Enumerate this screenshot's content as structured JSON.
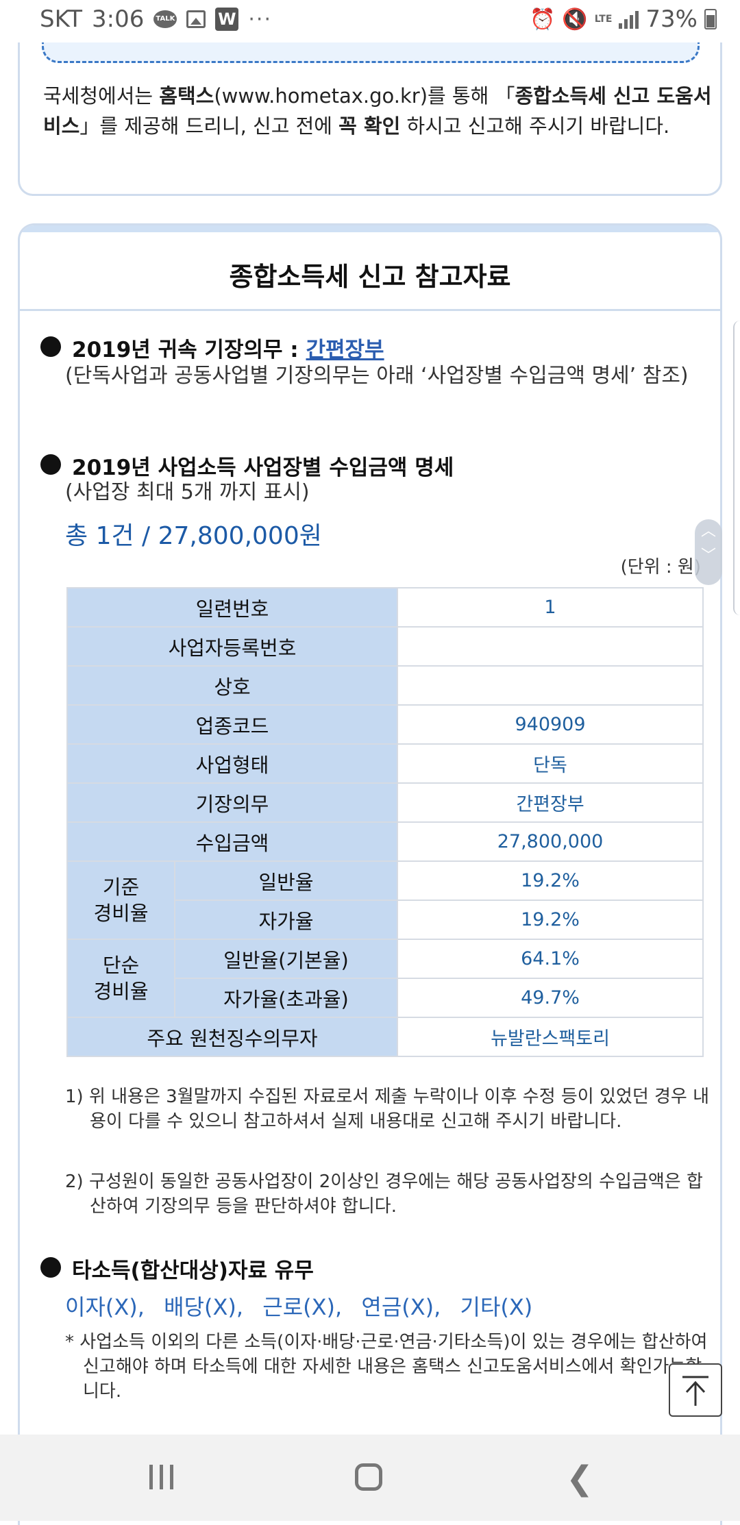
{
  "status_bar": {
    "carrier": "SKT",
    "time": "3:06",
    "talk_badge": "TALK",
    "w_badge": "W",
    "more": "···",
    "network": "LTE",
    "battery": "73%"
  },
  "notice": {
    "text_1": "국세청에서는 ",
    "text_bold_1": "홈택스",
    "text_2": "(www.hometax.go.kr)를 통해 「",
    "text_bold_2": "종합소득세 신고 도움서비스",
    "text_3": "」를 제공해 드리니, 신고 전에 ",
    "text_bold_3": "꼭 확인",
    "text_4": " 하시고 신고해 주시기 바랍니다."
  },
  "reference": {
    "title": "종합소득세 신고 참고자료",
    "duty": {
      "label": "2019년 귀속 기장의무 : ",
      "value": "간편장부",
      "sub": "(단독사업과 공동사업별 기장의무는 아래 ‘사업장별 수입금액 명세’ 참조)"
    },
    "income": {
      "title": "2019년 사업소득 사업장별 수입금액 명세",
      "sub": "(사업장 최대 5개 까지 표시)",
      "total": "총 1건 / 27,800,000원",
      "unit": "(단위 : 원)"
    },
    "table": {
      "serial_label": "일련번호",
      "serial_value": "1",
      "bizno_label": "사업자등록번호",
      "bizno_value": "",
      "name_label": "상호",
      "name_value": "",
      "code_label": "업종코드",
      "code_value": "940909",
      "type_label": "사업형태",
      "type_value": "단독",
      "duty_label": "기장의무",
      "duty_value": "간편장부",
      "amount_label": "수입금액",
      "amount_value": "27,800,000",
      "std_group": "기준\n경비율",
      "std_general_label": "일반율",
      "std_general_value": "19.2%",
      "std_self_label": "자가율",
      "std_self_value": "19.2%",
      "simple_group": "단순\n경비율",
      "simple_general_label": "일반율(기본율)",
      "simple_general_value": "64.1%",
      "simple_self_label": "자가율(초과율)",
      "simple_self_value": "49.7%",
      "withholder_label": "주요 원천징수의무자",
      "withholder_value": "뉴발란스팩토리"
    },
    "notes": [
      "1) 위 내용은 3월말까지 수집된 자료로서 제출 누락이나 이후 수정 등이 있었던 경우 내용이 다를 수 있으니 참고하셔서 실제 내용대로 신고해 주시기 바랍니다.",
      "2) 구성원이 동일한 공동사업장이 2이상인 경우에는 해당 공동사업장의 수입금액은 합산하여 기장의무 등을 판단하셔야 합니다."
    ],
    "other": {
      "title": "타소득(합산대상)자료 유무",
      "interest": "이자(X),",
      "dividend": "배당(X),",
      "labor": "근로(X),",
      "pension": "연금(X),",
      "etc": "기타(X)",
      "note": "* 사업소득 이외의 다른 소득(이자·배당·근로·연금·기타소득)이 있는 경우에는 합산하여 신고해야 하며 타소득에 대한 자세한 내용은 홈택스 신고도움서비스에서 확인가능합니다."
    }
  },
  "scroll_handle": {
    "up": "︿",
    "down": "﹀"
  }
}
